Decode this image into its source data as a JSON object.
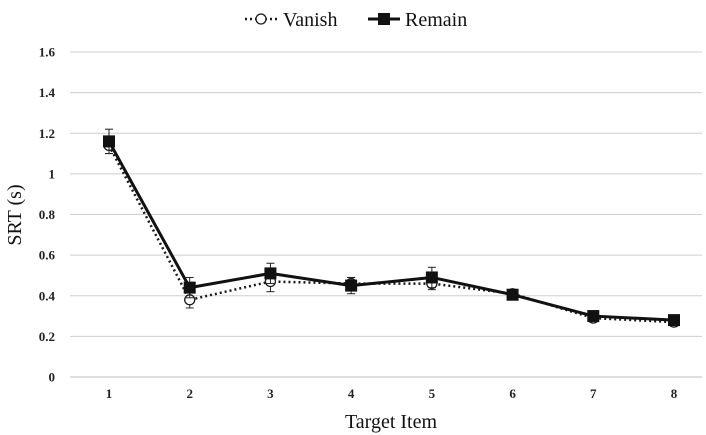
{
  "chart_data": {
    "type": "line",
    "title": "",
    "xlabel": "Target Item",
    "ylabel": "SRT (s)",
    "x": [
      "1",
      "2",
      "3",
      "4",
      "5",
      "6",
      "7",
      "8"
    ],
    "ylim": [
      0,
      1.6
    ],
    "yticks": [
      "0",
      "0.2",
      "0.4",
      "0.6",
      "0.8",
      "1",
      "1.2",
      "1.4",
      "1.6"
    ],
    "grid": true,
    "legend": "top-center",
    "series": [
      {
        "name": "Vanish",
        "values": [
          1.14,
          0.38,
          0.47,
          0.46,
          0.46,
          0.41,
          0.29,
          0.27
        ],
        "errors": [
          0.04,
          0.04,
          0.05,
          0.03,
          0.03,
          0.02,
          0.02,
          0.02
        ],
        "marker": "open-circle",
        "line": "dotted",
        "color": "#1a1a1a"
      },
      {
        "name": "Remain",
        "values": [
          1.16,
          0.44,
          0.51,
          0.45,
          0.49,
          0.405,
          0.3,
          0.28
        ],
        "errors": [
          0.06,
          0.05,
          0.05,
          0.04,
          0.05,
          0.02,
          0.02,
          0.02
        ],
        "marker": "filled-square",
        "line": "solid",
        "color": "#111111"
      }
    ]
  },
  "colors": {
    "gridline": "#cfcfcf",
    "axis": "#bdbdbd"
  }
}
